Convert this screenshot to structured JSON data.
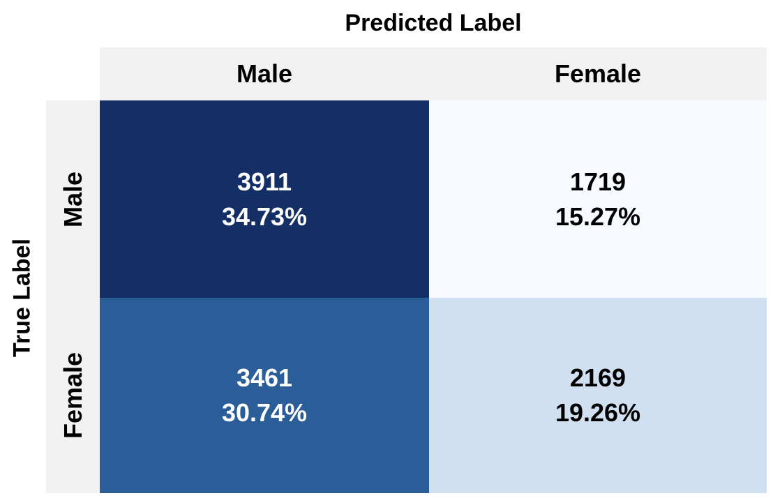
{
  "chart_data": {
    "type": "heatmap",
    "title": "",
    "xlabel": "Predicted Label",
    "ylabel": "True Label",
    "x_categories": [
      "Male",
      "Female"
    ],
    "y_categories": [
      "Male",
      "Female"
    ],
    "counts": [
      [
        3911,
        1719
      ],
      [
        3461,
        2169
      ]
    ],
    "percents": [
      [
        "34.73%",
        "15.27%"
      ],
      [
        "30.74%",
        "19.26%"
      ]
    ],
    "colors": [
      [
        "#142f66",
        "#f7fbff"
      ],
      [
        "#2b5e98",
        "#d0e0f0"
      ]
    ],
    "text_colors": [
      [
        "#ffffff",
        "#000000"
      ],
      [
        "#ffffff",
        "#000000"
      ]
    ],
    "header_background": "#f2f2f2"
  }
}
